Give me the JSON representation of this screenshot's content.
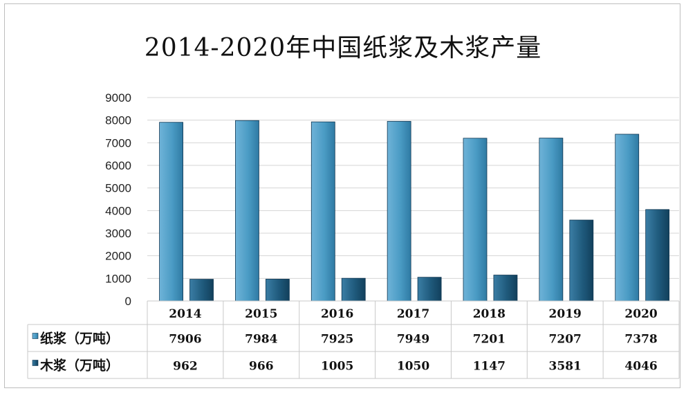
{
  "chart_data": {
    "type": "bar",
    "title": "2014-2020年中国纸浆及木浆产量",
    "categories": [
      "2014",
      "2015",
      "2016",
      "2017",
      "2018",
      "2019",
      "2020"
    ],
    "series": [
      {
        "name": "纸浆（万吨）",
        "values": [
          7906,
          7984,
          7925,
          7949,
          7201,
          7207,
          7378
        ],
        "color": "#4a9bc4"
      },
      {
        "name": "木浆（万吨）",
        "values": [
          962,
          966,
          1005,
          1050,
          1147,
          3581,
          4046
        ],
        "color": "#1f5a7c"
      }
    ],
    "yticks": [
      "0",
      "1000",
      "2000",
      "3000",
      "4000",
      "5000",
      "6000",
      "7000",
      "8000",
      "9000"
    ],
    "ylim": [
      0,
      9000
    ],
    "grid": true,
    "legend": "data-table"
  }
}
